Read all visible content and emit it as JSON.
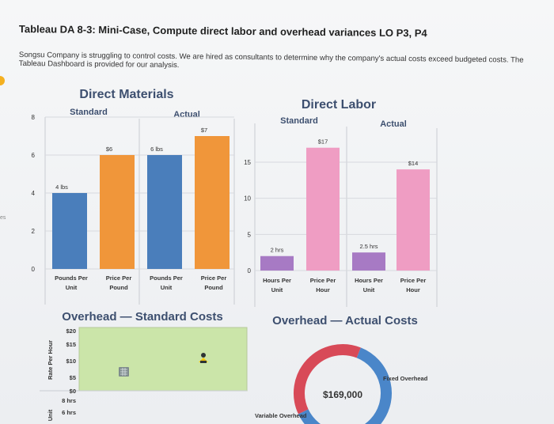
{
  "page": {
    "title": "Tableau DA 8-3: Mini-Case, Compute direct labor and overhead variances LO P3, P4",
    "intro": "Songsu Company is struggling to control costs. We are hired as consultants to determine why the company's actual costs exceed budgeted costs. The Tableau Dashboard is provided for our analysis.",
    "side_mark": "es"
  },
  "chart_data": [
    {
      "type": "bar",
      "title": "Direct Materials",
      "groups": [
        "Standard",
        "Actual"
      ],
      "categories": [
        "Pounds Per Unit",
        "Price Per Pound",
        "Pounds Per Unit",
        "Price Per Pound"
      ],
      "values": [
        4,
        6,
        6,
        7
      ],
      "data_labels": [
        "4 lbs",
        "$6",
        "6 lbs",
        "$7"
      ],
      "colors": [
        "#4a7ebb",
        "#f0963a",
        "#4a7ebb",
        "#f0963a"
      ],
      "ylim": [
        0,
        8
      ],
      "yticks": [
        "8",
        "6",
        "4",
        "2",
        "0"
      ],
      "grid": true
    },
    {
      "type": "bar",
      "title": "Direct Labor",
      "groups": [
        "Standard",
        "Actual"
      ],
      "categories": [
        "Hours Per Unit",
        "Price Per Hour",
        "Hours Per Unit",
        "Price Per Hour"
      ],
      "values": [
        2,
        17,
        2.5,
        14
      ],
      "data_labels": [
        "2 hrs",
        "$17",
        "2.5 hrs",
        "$14"
      ],
      "colors": [
        "#a77ac4",
        "#ef9dc3",
        "#a77ac4",
        "#ef9dc3"
      ],
      "ylim": [
        0,
        18
      ],
      "yticks": [
        "15",
        "10",
        "5",
        "0"
      ],
      "grid": true
    },
    {
      "type": "scatter",
      "title": "Overhead — Standard Costs",
      "ylabel_top": "Rate Per Hour",
      "ylabel_bottom": "Unit",
      "yticks": [
        "$20",
        "$15",
        "$10",
        "$5",
        "$0"
      ],
      "yticks_bottom": [
        "8 hrs",
        "6 hrs"
      ],
      "background": "#cbe5a9"
    },
    {
      "type": "pie",
      "title": "Overhead — Actual Costs",
      "center_label": "$169,000",
      "slices": [
        {
          "name": "Fixed Overhead",
          "share": 0.62,
          "color": "#4a86c9"
        },
        {
          "name": "Variable Overhead",
          "share": 0.38,
          "color": "#d84a58"
        }
      ],
      "legend_labels": [
        "Fixed Overhead",
        "Variable Overhead"
      ]
    }
  ]
}
